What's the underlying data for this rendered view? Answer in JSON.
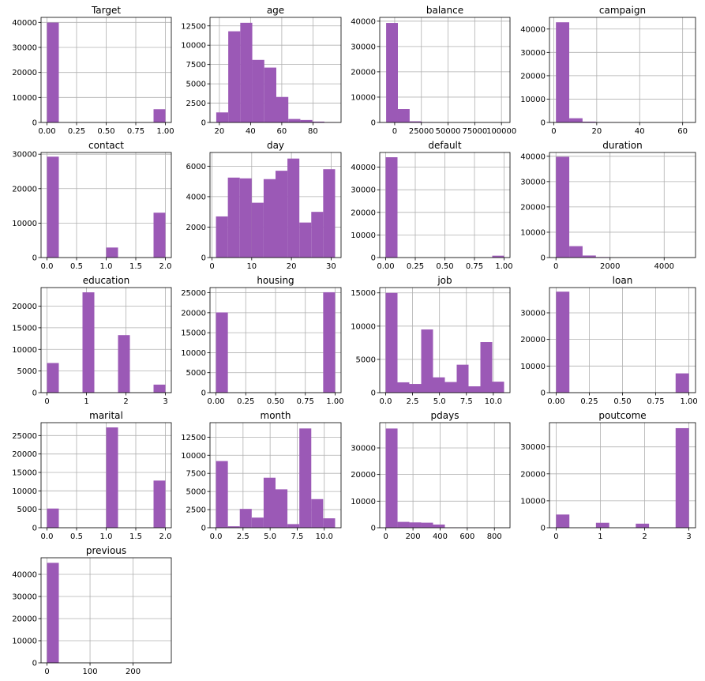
{
  "bar_color": "#9b59b6",
  "chart_data": [
    {
      "type": "bar",
      "title": "Target",
      "xlim": [
        -0.05,
        1.05
      ],
      "ylim": [
        0,
        42000
      ],
      "xticks": [
        0.0,
        0.25,
        0.5,
        0.75,
        1.0
      ],
      "xtick_labels": [
        "0.00",
        "0.25",
        "0.50",
        "0.75",
        "1.00"
      ],
      "yticks": [
        0,
        10000,
        20000,
        30000,
        40000
      ],
      "ytick_labels": [
        "0",
        "10000",
        "20000",
        "30000",
        "40000"
      ],
      "bins": [
        [
          0,
          0.1,
          39922
        ],
        [
          0.9,
          1.0,
          5289
        ]
      ]
    },
    {
      "type": "bar",
      "title": "age",
      "xlim": [
        14,
        98
      ],
      "ylim": [
        0,
        13600
      ],
      "xticks": [
        20,
        40,
        60,
        80
      ],
      "xtick_labels": [
        "20",
        "40",
        "60",
        "80"
      ],
      "yticks": [
        0,
        2500,
        5000,
        7500,
        10000,
        12500
      ],
      "ytick_labels": [
        "0",
        "2500",
        "5000",
        "7500",
        "10000",
        "12500"
      ],
      "bins": [
        [
          18,
          25.7,
          1300
        ],
        [
          25.7,
          33.4,
          11800
        ],
        [
          33.4,
          41.1,
          12900
        ],
        [
          41.1,
          48.8,
          8100
        ],
        [
          48.8,
          56.5,
          7100
        ],
        [
          56.5,
          64.2,
          3300
        ],
        [
          64.2,
          71.9,
          450
        ],
        [
          71.9,
          79.6,
          320
        ],
        [
          79.6,
          87.3,
          110
        ],
        [
          87.3,
          95,
          20
        ]
      ]
    },
    {
      "type": "bar",
      "title": "balance",
      "xlim": [
        -14000,
        108000
      ],
      "ylim": [
        0,
        41500
      ],
      "xticks": [
        0,
        25000,
        50000,
        75000,
        100000
      ],
      "xtick_labels": [
        "0",
        "25000",
        "50000",
        "75000",
        "100000"
      ],
      "yticks": [
        0,
        10000,
        20000,
        30000,
        40000
      ],
      "ytick_labels": [
        "0",
        "10000",
        "20000",
        "30000",
        "40000"
      ],
      "bins": [
        [
          -8019,
          3000,
          39300
        ],
        [
          3000,
          14000,
          5300
        ],
        [
          14000,
          25000,
          450
        ],
        [
          25000,
          36000,
          100
        ],
        [
          36000,
          47000,
          30
        ],
        [
          47000,
          58000,
          15
        ],
        [
          58000,
          69000,
          10
        ],
        [
          69000,
          80000,
          5
        ],
        [
          80000,
          91000,
          3
        ],
        [
          91000,
          102127,
          2
        ]
      ]
    },
    {
      "type": "bar",
      "title": "campaign",
      "xlim": [
        -2,
        66
      ],
      "ylim": [
        0,
        45000
      ],
      "xticks": [
        0,
        20,
        40,
        60
      ],
      "xtick_labels": [
        "0",
        "20",
        "40",
        "60"
      ],
      "yticks": [
        0,
        10000,
        20000,
        30000,
        40000
      ],
      "ytick_labels": [
        "0",
        "10000",
        "20000",
        "30000",
        "40000"
      ],
      "bins": [
        [
          1,
          7.2,
          42900
        ],
        [
          7.2,
          13.4,
          1800
        ],
        [
          13.4,
          19.6,
          350
        ],
        [
          19.6,
          25.8,
          120
        ],
        [
          25.8,
          32,
          40
        ],
        [
          32,
          38.2,
          15
        ],
        [
          38.2,
          44.4,
          5
        ],
        [
          44.4,
          50.6,
          3
        ],
        [
          50.6,
          56.8,
          2
        ],
        [
          56.8,
          63,
          1
        ]
      ]
    },
    {
      "type": "bar",
      "title": "contact",
      "xlim": [
        -0.1,
        2.1
      ],
      "ylim": [
        0,
        30500
      ],
      "xticks": [
        0.0,
        0.5,
        1.0,
        1.5,
        2.0
      ],
      "xtick_labels": [
        "0.0",
        "0.5",
        "1.0",
        "1.5",
        "2.0"
      ],
      "yticks": [
        0,
        10000,
        20000,
        30000
      ],
      "ytick_labels": [
        "0",
        "10000",
        "20000",
        "30000"
      ],
      "bins": [
        [
          0,
          0.2,
          29285
        ],
        [
          1.0,
          1.2,
          2906
        ],
        [
          1.8,
          2.0,
          13020
        ]
      ]
    },
    {
      "type": "bar",
      "title": "day",
      "xlim": [
        -0.5,
        32.5
      ],
      "ylim": [
        0,
        6900
      ],
      "xticks": [
        0,
        10,
        20,
        30
      ],
      "xtick_labels": [
        "0",
        "10",
        "20",
        "30"
      ],
      "yticks": [
        0,
        2000,
        4000,
        6000
      ],
      "ytick_labels": [
        "0",
        "2000",
        "4000",
        "6000"
      ],
      "bins": [
        [
          1,
          4,
          2700
        ],
        [
          4,
          7,
          5250
        ],
        [
          7,
          10,
          5200
        ],
        [
          10,
          13,
          3600
        ],
        [
          13,
          16,
          5150
        ],
        [
          16,
          19,
          5700
        ],
        [
          19,
          22,
          6500
        ],
        [
          22,
          25,
          2300
        ],
        [
          25,
          28,
          3000
        ],
        [
          28,
          31,
          5800
        ]
      ]
    },
    {
      "type": "bar",
      "title": "default",
      "xlim": [
        -0.05,
        1.05
      ],
      "ylim": [
        0,
        46500
      ],
      "xticks": [
        0.0,
        0.25,
        0.5,
        0.75,
        1.0
      ],
      "xtick_labels": [
        "0.00",
        "0.25",
        "0.50",
        "0.75",
        "1.00"
      ],
      "yticks": [
        0,
        10000,
        20000,
        30000,
        40000
      ],
      "ytick_labels": [
        "0",
        "10000",
        "20000",
        "30000",
        "40000"
      ],
      "bins": [
        [
          0,
          0.1,
          44396
        ],
        [
          0.9,
          1.0,
          815
        ]
      ]
    },
    {
      "type": "bar",
      "title": "duration",
      "xlim": [
        -240,
        5160
      ],
      "ylim": [
        0,
        41500
      ],
      "xticks": [
        0,
        2000,
        4000
      ],
      "xtick_labels": [
        "0",
        "2000",
        "4000"
      ],
      "yticks": [
        0,
        10000,
        20000,
        30000,
        40000
      ],
      "ytick_labels": [
        "0",
        "10000",
        "20000",
        "30000",
        "40000"
      ],
      "bins": [
        [
          0,
          492,
          39800
        ],
        [
          492,
          984,
          4500
        ],
        [
          984,
          1476,
          800
        ],
        [
          1476,
          1968,
          200
        ],
        [
          1968,
          2460,
          60
        ],
        [
          2460,
          2952,
          20
        ],
        [
          2952,
          3444,
          10
        ],
        [
          3444,
          3936,
          5
        ],
        [
          3936,
          4428,
          3
        ],
        [
          4428,
          4918,
          2
        ]
      ]
    },
    {
      "type": "bar",
      "title": "education",
      "xlim": [
        -0.15,
        3.15
      ],
      "ylim": [
        0,
        24300
      ],
      "xticks": [
        0,
        1,
        2,
        3
      ],
      "xtick_labels": [
        "0",
        "1",
        "2",
        "3"
      ],
      "yticks": [
        0,
        5000,
        10000,
        15000,
        20000
      ],
      "ytick_labels": [
        "0",
        "5000",
        "10000",
        "15000",
        "20000"
      ],
      "bins": [
        [
          0,
          0.3,
          6851
        ],
        [
          0.9,
          1.2,
          23202
        ],
        [
          1.8,
          2.1,
          13301
        ],
        [
          2.7,
          3.0,
          1857
        ]
      ]
    },
    {
      "type": "bar",
      "title": "housing",
      "xlim": [
        -0.05,
        1.05
      ],
      "ylim": [
        0,
        26300
      ],
      "xticks": [
        0.0,
        0.25,
        0.5,
        0.75,
        1.0
      ],
      "xtick_labels": [
        "0.00",
        "0.25",
        "0.50",
        "0.75",
        "1.00"
      ],
      "yticks": [
        0,
        5000,
        10000,
        15000,
        20000,
        25000
      ],
      "ytick_labels": [
        "0",
        "5000",
        "10000",
        "15000",
        "20000",
        "25000"
      ],
      "bins": [
        [
          0,
          0.1,
          20081
        ],
        [
          0.9,
          1.0,
          25130
        ]
      ]
    },
    {
      "type": "bar",
      "title": "job",
      "xlim": [
        -0.55,
        11.55
      ],
      "ylim": [
        0,
        15800
      ],
      "xticks": [
        0,
        2.5,
        5,
        7.5,
        10
      ],
      "xtick_labels": [
        "0.0",
        "2.5",
        "5.0",
        "7.5",
        "10.0"
      ],
      "yticks": [
        0,
        5000,
        10000,
        15000
      ],
      "ytick_labels": [
        "0",
        "5000",
        "10000",
        "15000"
      ],
      "bins": [
        [
          0,
          1.1,
          15000
        ],
        [
          1.1,
          2.2,
          1550
        ],
        [
          2.2,
          3.3,
          1300
        ],
        [
          3.3,
          4.4,
          9500
        ],
        [
          4.4,
          5.5,
          2300
        ],
        [
          5.5,
          6.6,
          1600
        ],
        [
          6.6,
          7.7,
          4200
        ],
        [
          7.7,
          8.8,
          950
        ],
        [
          8.8,
          9.9,
          7600
        ],
        [
          9.9,
          11.0,
          1650
        ]
      ]
    },
    {
      "type": "bar",
      "title": "loan",
      "xlim": [
        -0.05,
        1.05
      ],
      "ylim": [
        0,
        39500
      ],
      "xticks": [
        0.0,
        0.25,
        0.5,
        0.75,
        1.0
      ],
      "xtick_labels": [
        "0.00",
        "0.25",
        "0.50",
        "0.75",
        "1.00"
      ],
      "yticks": [
        0,
        10000,
        20000,
        30000
      ],
      "ytick_labels": [
        "0",
        "10000",
        "20000",
        "30000"
      ],
      "bins": [
        [
          0,
          0.1,
          37967
        ],
        [
          0.9,
          1.0,
          7244
        ]
      ]
    },
    {
      "type": "bar",
      "title": "marital",
      "xlim": [
        -0.1,
        2.1
      ],
      "ylim": [
        0,
        28500
      ],
      "xticks": [
        0.0,
        0.5,
        1.0,
        1.5,
        2.0
      ],
      "xtick_labels": [
        "0.0",
        "0.5",
        "1.0",
        "1.5",
        "2.0"
      ],
      "yticks": [
        0,
        5000,
        10000,
        15000,
        20000,
        25000
      ],
      "ytick_labels": [
        "0",
        "5000",
        "10000",
        "15000",
        "20000",
        "25000"
      ],
      "bins": [
        [
          0,
          0.2,
          5207
        ],
        [
          1.0,
          1.2,
          27214
        ],
        [
          1.8,
          2.0,
          12790
        ]
      ]
    },
    {
      "type": "bar",
      "title": "month",
      "xlim": [
        -0.55,
        11.55
      ],
      "ylim": [
        0,
        14500
      ],
      "xticks": [
        0,
        2.5,
        5,
        7.5,
        10
      ],
      "xtick_labels": [
        "0.0",
        "2.5",
        "5.0",
        "7.5",
        "10.0"
      ],
      "yticks": [
        0,
        2500,
        5000,
        7500,
        10000,
        12500
      ],
      "ytick_labels": [
        "0",
        "2500",
        "5000",
        "7500",
        "10000",
        "12500"
      ],
      "bins": [
        [
          0,
          1.1,
          9200
        ],
        [
          1.1,
          2.2,
          200
        ],
        [
          2.2,
          3.3,
          2600
        ],
        [
          3.3,
          4.4,
          1400
        ],
        [
          4.4,
          5.5,
          6900
        ],
        [
          5.5,
          6.6,
          5300
        ],
        [
          6.6,
          7.7,
          500
        ],
        [
          7.7,
          8.8,
          13700
        ],
        [
          8.8,
          9.9,
          3950
        ],
        [
          9.9,
          11.0,
          1300
        ]
      ]
    },
    {
      "type": "bar",
      "title": "pdays",
      "xlim": [
        -45,
        915
      ],
      "ylim": [
        0,
        39500
      ],
      "xticks": [
        0,
        200,
        400,
        600,
        800
      ],
      "xtick_labels": [
        "0",
        "200",
        "400",
        "600",
        "800"
      ],
      "yticks": [
        0,
        10000,
        20000,
        30000
      ],
      "ytick_labels": [
        "0",
        "10000",
        "20000",
        "30000"
      ],
      "bins": [
        [
          -1,
          86.2,
          37300
        ],
        [
          86.2,
          173.4,
          2200
        ],
        [
          173.4,
          260.6,
          2000
        ],
        [
          260.6,
          347.8,
          1900
        ],
        [
          347.8,
          435,
          1200
        ],
        [
          435,
          522.2,
          100
        ],
        [
          522.2,
          609.4,
          80
        ],
        [
          609.4,
          696.6,
          30
        ],
        [
          696.6,
          783.8,
          10
        ],
        [
          783.8,
          871,
          5
        ]
      ]
    },
    {
      "type": "bar",
      "title": "poutcome",
      "xlim": [
        -0.15,
        3.15
      ],
      "ylim": [
        0,
        39000
      ],
      "xticks": [
        0,
        1,
        2,
        3
      ],
      "xtick_labels": [
        "0",
        "1",
        "2",
        "3"
      ],
      "yticks": [
        0,
        10000,
        20000,
        30000
      ],
      "ytick_labels": [
        "0",
        "10000",
        "20000",
        "30000"
      ],
      "bins": [
        [
          0,
          0.3,
          4901
        ],
        [
          0.9,
          1.2,
          1840
        ],
        [
          1.8,
          2.1,
          1511
        ],
        [
          2.7,
          3.0,
          36959
        ]
      ]
    },
    {
      "type": "bar",
      "title": "previous",
      "xlim": [
        -13.75,
        288.75
      ],
      "ylim": [
        0,
        47500
      ],
      "xticks": [
        0,
        100,
        200
      ],
      "xtick_labels": [
        "0",
        "100",
        "200"
      ],
      "yticks": [
        0,
        10000,
        20000,
        30000,
        40000
      ],
      "ytick_labels": [
        "0",
        "10000",
        "20000",
        "30000",
        "40000"
      ],
      "bins": [
        [
          0,
          27.5,
          45200
        ],
        [
          27.5,
          55,
          8
        ],
        [
          55,
          82.5,
          1
        ],
        [
          82.5,
          110,
          0
        ],
        [
          110,
          137.5,
          0
        ],
        [
          137.5,
          165,
          0
        ],
        [
          165,
          192.5,
          0
        ],
        [
          192.5,
          220,
          0
        ],
        [
          220,
          247.5,
          0
        ],
        [
          247.5,
          275,
          1
        ]
      ]
    }
  ]
}
